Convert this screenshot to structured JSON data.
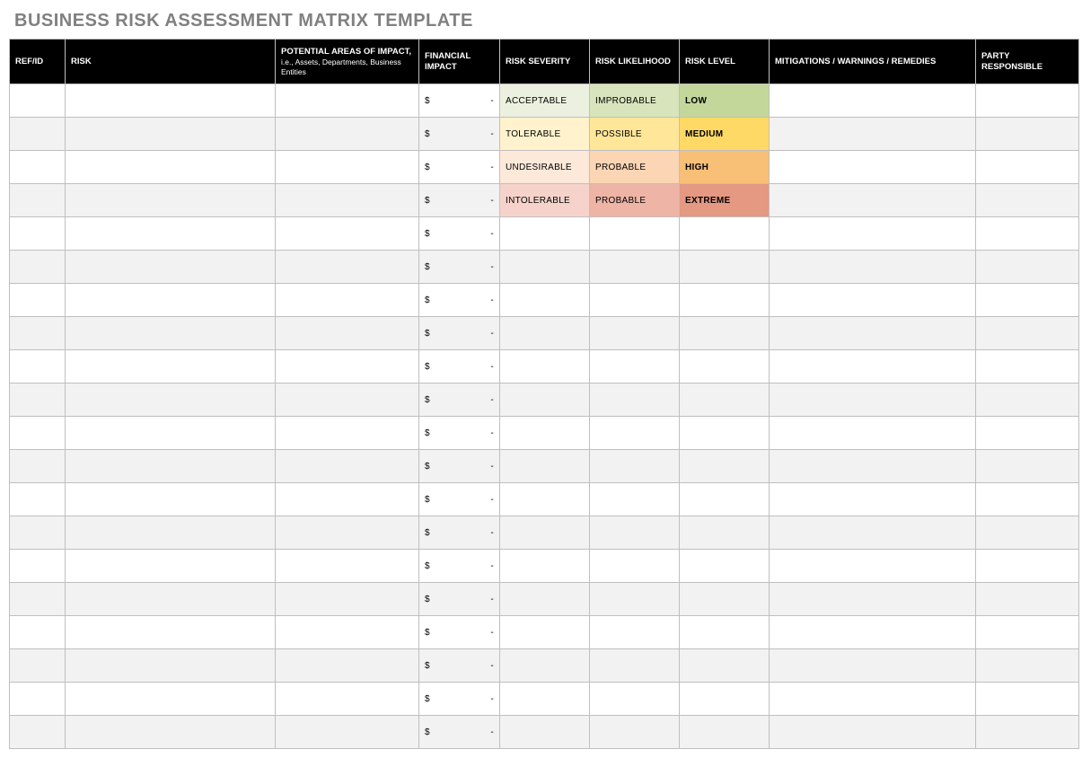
{
  "title": "BUSINESS RISK ASSESSMENT MATRIX TEMPLATE",
  "columns": {
    "ref": {
      "label": "REF/ID"
    },
    "risk": {
      "label": "RISK"
    },
    "area": {
      "label": "POTENTIAL AREAS OF IMPACT,",
      "sublabel": "i.e., Assets, Departments, Business Entities"
    },
    "financial": {
      "label": "FINANCIAL IMPACT"
    },
    "severity": {
      "label": "RISK SEVERITY"
    },
    "likelihood": {
      "label": "RISK LIKELIHOOD"
    },
    "level": {
      "label": "RISK LEVEL"
    },
    "mitig": {
      "label": "MITIGATIONS / WARNINGS / REMEDIES"
    },
    "party": {
      "label": "PARTY RESPONSIBLE"
    }
  },
  "financial_placeholder": {
    "currency": "$",
    "dash": "-"
  },
  "colors": {
    "header_bg": "#000000",
    "header_fg": "#ffffff",
    "border": "#bfbfbf",
    "row_alt": "#f2f2f2",
    "row_white": "#ffffff",
    "title_fg": "#808080"
  },
  "row_count": 20,
  "filled_rows": [
    {
      "severity": {
        "text": "ACCEPTABLE",
        "bg": "#ebf1de"
      },
      "likelihood": {
        "text": "IMPROBABLE",
        "bg": "#d8e4bc"
      },
      "level": {
        "text": "LOW",
        "bg": "#c4d79b"
      }
    },
    {
      "severity": {
        "text": "TOLERABLE",
        "bg": "#fff2cc"
      },
      "likelihood": {
        "text": "POSSIBLE",
        "bg": "#ffe699"
      },
      "level": {
        "text": "MEDIUM",
        "bg": "#ffd966"
      }
    },
    {
      "severity": {
        "text": "UNDESIRABLE",
        "bg": "#fde9d9"
      },
      "likelihood": {
        "text": "PROBABLE",
        "bg": "#fcd5b4"
      },
      "level": {
        "text": "HIGH",
        "bg": "#f8b f77"
      }
    },
    {
      "severity": {
        "text": "INTOLERABLE",
        "bg": "#f6d3ca"
      },
      "likelihood": {
        "text": "PROBABLE",
        "bg": "#eeb5a6"
      },
      "level": {
        "text": "EXTREME",
        "bg": "#e59882"
      }
    }
  ],
  "_note_high_bg_cleaned": "#f8bf77"
}
